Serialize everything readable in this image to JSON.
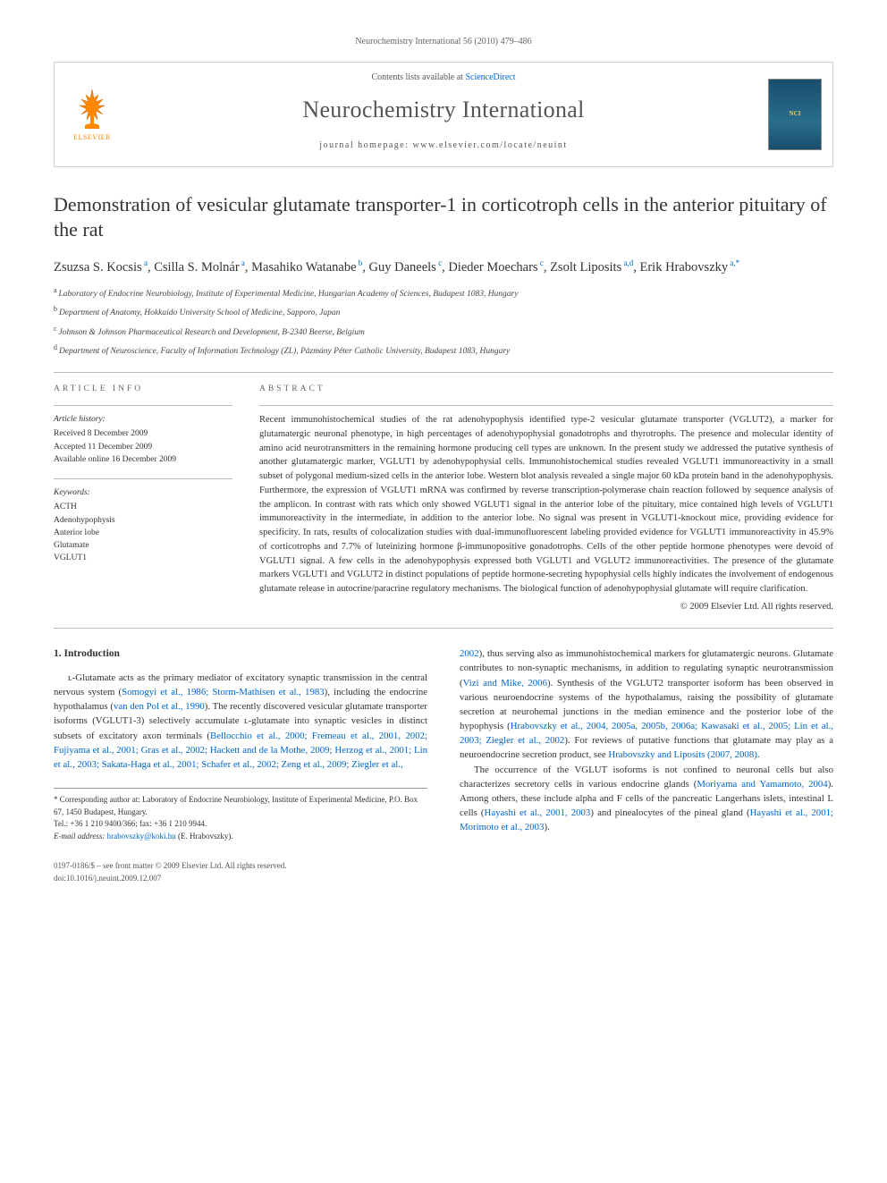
{
  "header_line": "Neurochemistry International 56 (2010) 479–486",
  "banner": {
    "contents_line_pre": "Contents lists available at ",
    "contents_link": "ScienceDirect",
    "journal_name": "Neurochemistry International",
    "homepage_pre": "journal homepage: ",
    "homepage_url": "www.elsevier.com/locate/neuint",
    "publisher_name": "ELSEVIER",
    "cover_label": "NCI"
  },
  "title": "Demonstration of vesicular glutamate transporter-1 in corticotroph cells in the anterior pituitary of the rat",
  "authors_html": "Zsuzsa S. Kocsis|a|, Csilla S. Molnár|a|, Masahiko Watanabe|b|, Guy Daneels|c|, Dieder Moechars|c|, Zsolt Liposits|a,d|, Erik Hrabovszky|a,*|",
  "affiliations": [
    {
      "sup": "a",
      "text": "Laboratory of Endocrine Neurobiology, Institute of Experimental Medicine, Hungarian Academy of Sciences, Budapest 1083, Hungary"
    },
    {
      "sup": "b",
      "text": "Department of Anatomy, Hokkaido University School of Medicine, Sapporo, Japan"
    },
    {
      "sup": "c",
      "text": "Johnson & Johnson Pharmaceutical Research and Development, B-2340 Beerse, Belgium"
    },
    {
      "sup": "d",
      "text": "Department of Neuroscience, Faculty of Information Technology (ZL), Pázmány Péter Catholic University, Budapest 1083, Hungary"
    }
  ],
  "article_info": {
    "label": "ARTICLE INFO",
    "history_label": "Article history:",
    "history": [
      "Received 8 December 2009",
      "Accepted 11 December 2009",
      "Available online 16 December 2009"
    ],
    "keywords_label": "Keywords:",
    "keywords": [
      "ACTH",
      "Adenohypophysis",
      "Anterior lobe",
      "Glutamate",
      "VGLUT1"
    ]
  },
  "abstract": {
    "label": "ABSTRACT",
    "text": "Recent immunohistochemical studies of the rat adenohypophysis identified type-2 vesicular glutamate transporter (VGLUT2), a marker for glutamatergic neuronal phenotype, in high percentages of adenohypophysial gonadotrophs and thyrotrophs. The presence and molecular identity of amino acid neurotransmitters in the remaining hormone producing cell types are unknown. In the present study we addressed the putative synthesis of another glutamatergic marker, VGLUT1 by adenohypophysial cells. Immunohistochemical studies revealed VGLUT1 immunoreactivity in a small subset of polygonal medium-sized cells in the anterior lobe. Western blot analysis revealed a single major 60 kDa protein band in the adenohypophysis. Furthermore, the expression of VGLUT1 mRNA was confirmed by reverse transcription-polymerase chain reaction followed by sequence analysis of the amplicon. In contrast with rats which only showed VGLUT1 signal in the anterior lobe of the pituitary, mice contained high levels of VGLUT1 immunoreactivity in the intermediate, in addition to the anterior lobe. No signal was present in VGLUT1-knockout mice, providing evidence for specificity. In rats, results of colocalization studies with dual-immunofluorescent labeling provided evidence for VGLUT1 immunoreactivity in 45.9% of corticotrophs and 7.7% of luteinizing hormone β-immunopositive gonadotrophs. Cells of the other peptide hormone phenotypes were devoid of VGLUT1 signal. A few cells in the adenohypophysis expressed both VGLUT1 and VGLUT2 immunoreactivities. The presence of the glutamate markers VGLUT1 and VGLUT2 in distinct populations of peptide hormone-secreting hypophysial cells highly indicates the involvement of endogenous glutamate release in autocrine/paracrine regulatory mechanisms. The biological function of adenohypophysial glutamate will require clarification.",
    "copyright": "© 2009 Elsevier Ltd. All rights reserved."
  },
  "intro": {
    "heading": "1. Introduction",
    "col1_p1_pre": "ʟ-Glutamate acts as the primary mediator of excitatory synaptic transmission in the central nervous system (",
    "col1_p1_link1": "Somogyi et al., 1986; Storm-Mathisen et al., 1983",
    "col1_p1_mid1": "), including the endocrine hypothalamus (",
    "col1_p1_link2": "van den Pol et al., 1990",
    "col1_p1_mid2": "). The recently discovered vesicular glutamate transporter isoforms (VGLUT1-3) selectively accumulate ʟ-glutamate into synaptic vesicles in distinct subsets of excitatory axon terminals (",
    "col1_p1_link3": "Bellocchio et al., 2000; Fremeau et al., 2001, 2002; Fujiyama et al., 2001; Gras et al., 2002; Hackett and de la Mothe, 2009; Herzog et al., 2001; Lin et al., 2003; Sakata-Haga et al., 2001; Schafer et al., 2002; Zeng et al., 2009; Ziegler et al.,",
    "col2_p1_link_cont": "2002",
    "col2_p1_mid1": "), thus serving also as immunohistochemical markers for glutamatergic neurons. Glutamate contributes to non-synaptic mechanisms, in addition to regulating synaptic neurotransmission (",
    "col2_p1_link1": "Vizi and Mike, 2006",
    "col2_p1_mid2": "). Synthesis of the VGLUT2 transporter isoform has been observed in various neuroendocrine systems of the hypothalamus, raising the possibility of glutamate secretion at neurohemal junctions in the median eminence and the posterior lobe of the hypophysis (",
    "col2_p1_link2": "Hrabovszky et al., 2004, 2005a, 2005b, 2006a; Kawasaki et al., 2005; Lin et al., 2003; Ziegler et al., 2002",
    "col2_p1_mid3": "). For reviews of putative functions that glutamate may play as a neuroendocrine secretion product, see ",
    "col2_p1_link3": "Hrabovszky and Liposits (2007, 2008)",
    "col2_p1_end": ".",
    "col2_p2_pre": "The occurrence of the VGLUT isoforms is not confined to neuronal cells but also characterizes secretory cells in various endocrine glands (",
    "col2_p2_link1": "Moriyama and Yamamoto, 2004",
    "col2_p2_mid1": "). Among others, these include alpha and F cells of the pancreatic Langerhans islets, intestinal L cells (",
    "col2_p2_link2": "Hayashi et al., 2001, 2003",
    "col2_p2_mid2": ") and pinealocytes of the pineal gland (",
    "col2_p2_link3": "Hayashi et al., 2001; Morimoto et al., 2003",
    "col2_p2_end": ")."
  },
  "footnote": {
    "corr_label": "* Corresponding author at: Laboratory of Endocrine Neurobiology, Institute of Experimental Medicine, P.O. Box 67, 1450 Budapest, Hungary.",
    "tel": "Tel.: +36 1 210 9400/366; fax: +36 1 210 9944.",
    "email_label": "E-mail address: ",
    "email": "hrabovszky@koki.hu",
    "email_suffix": " (E. Hrabovszky)."
  },
  "footer": {
    "issn": "0197-0186/$ – see front matter © 2009 Elsevier Ltd. All rights reserved.",
    "doi": "doi:10.1016/j.neuint.2009.12.007"
  },
  "colors": {
    "link": "#0066cc",
    "text": "#333333",
    "muted": "#666666",
    "rule": "#bbbbbb",
    "elsevier_orange": "#ff8800",
    "cover_bg": "#1a4d6d"
  }
}
